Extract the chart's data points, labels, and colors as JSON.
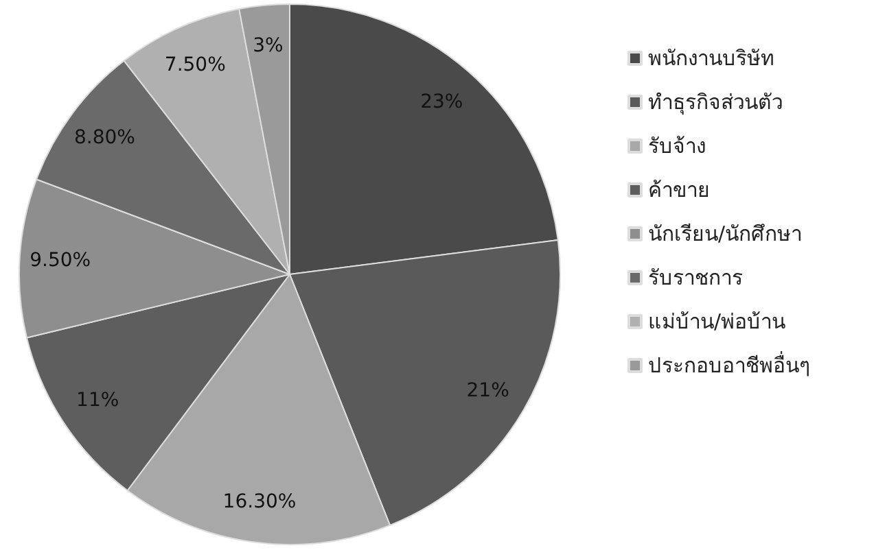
{
  "chart_data": {
    "type": "pie",
    "categories": [
      "พนักงานบริษัท",
      "ทำธุรกิจส่วนตัว",
      "รับจ้าง",
      "ค้าขาย",
      "นักเรียน/นักศึกษา",
      "รับราชการ",
      "แม่บ้าน/พ่อบ้าน",
      "ประกอบอาชีพอื่นๆ"
    ],
    "values": [
      23,
      21,
      16.3,
      11,
      9.5,
      8.8,
      7.5,
      3
    ],
    "value_labels": [
      "23%",
      "21%",
      "16.30%",
      "11%",
      "9.50%",
      "8.80%",
      "7.50%",
      "3%"
    ],
    "colors": [
      "#4a4a4a",
      "#5a5a5a",
      "#a8a8a8",
      "#5e5e5e",
      "#8e8e8e",
      "#6a6a6a",
      "#b0b0b0",
      "#9a9a9a"
    ],
    "legend": "right"
  }
}
